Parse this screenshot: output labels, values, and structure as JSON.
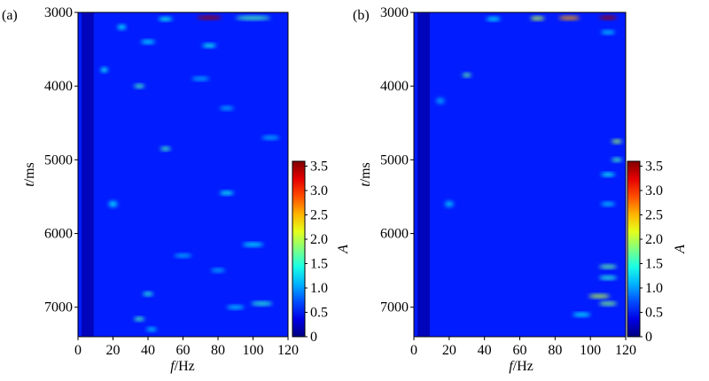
{
  "chart_data": [
    {
      "type": "heatmap",
      "panel_label": "(a)",
      "xlabel_italic": "f",
      "xlabel_unit": "/Hz",
      "ylabel_italic": "t",
      "ylabel_unit": "/ms",
      "xlim": [
        0,
        120
      ],
      "ylim": [
        3000,
        7400
      ],
      "y_inverted": true,
      "xticks": [
        0,
        20,
        40,
        60,
        80,
        100,
        120
      ],
      "yticks": [
        3000,
        4000,
        5000,
        6000,
        7000
      ],
      "colorbar": {
        "label": "A",
        "range": [
          0,
          3.6
        ],
        "ticks": [
          0,
          0.5,
          1.0,
          1.5,
          2.0,
          2.5,
          3.0,
          3.5
        ]
      },
      "colormap": "jet",
      "background_level": 0.55,
      "features": [
        {
          "f": 75,
          "t": 3070,
          "A": 3.5,
          "fw": 14,
          "tw": 22
        },
        {
          "f": 100,
          "t": 3075,
          "A": 1.6,
          "fw": 20,
          "tw": 20
        },
        {
          "f": 50,
          "t": 3090,
          "A": 1.4,
          "fw": 8,
          "tw": 20
        },
        {
          "f": 25,
          "t": 3200,
          "A": 1.3,
          "fw": 5,
          "tw": 60
        },
        {
          "f": 40,
          "t": 3400,
          "A": 1.3,
          "fw": 8,
          "tw": 25
        },
        {
          "f": 75,
          "t": 3450,
          "A": 1.4,
          "fw": 8,
          "tw": 25
        },
        {
          "f": 15,
          "t": 3780,
          "A": 1.4,
          "fw": 4,
          "tw": 60
        },
        {
          "f": 35,
          "t": 4000,
          "A": 1.6,
          "fw": 6,
          "tw": 30
        },
        {
          "f": 70,
          "t": 3900,
          "A": 1.1,
          "fw": 10,
          "tw": 20
        },
        {
          "f": 85,
          "t": 4300,
          "A": 1.1,
          "fw": 8,
          "tw": 30
        },
        {
          "f": 50,
          "t": 4850,
          "A": 1.6,
          "fw": 6,
          "tw": 30
        },
        {
          "f": 110,
          "t": 4700,
          "A": 1.1,
          "fw": 10,
          "tw": 20
        },
        {
          "f": 85,
          "t": 5450,
          "A": 1.4,
          "fw": 8,
          "tw": 25
        },
        {
          "f": 20,
          "t": 5600,
          "A": 1.2,
          "fw": 5,
          "tw": 80
        },
        {
          "f": 100,
          "t": 6150,
          "A": 1.3,
          "fw": 12,
          "tw": 25
        },
        {
          "f": 60,
          "t": 6300,
          "A": 1.1,
          "fw": 10,
          "tw": 20
        },
        {
          "f": 80,
          "t": 6500,
          "A": 1.1,
          "fw": 8,
          "tw": 25
        },
        {
          "f": 40,
          "t": 6820,
          "A": 1.5,
          "fw": 6,
          "tw": 30
        },
        {
          "f": 105,
          "t": 6950,
          "A": 1.5,
          "fw": 12,
          "tw": 30
        },
        {
          "f": 90,
          "t": 7000,
          "A": 1.2,
          "fw": 10,
          "tw": 30
        },
        {
          "f": 35,
          "t": 7160,
          "A": 1.6,
          "fw": 6,
          "tw": 35
        },
        {
          "f": 42,
          "t": 7300,
          "A": 1.2,
          "fw": 6,
          "tw": 25
        }
      ]
    },
    {
      "type": "heatmap",
      "panel_label": "(b)",
      "xlabel_italic": "f",
      "xlabel_unit": "/Hz",
      "ylabel_italic": "t",
      "ylabel_unit": "/ms",
      "xlim": [
        0,
        120
      ],
      "ylim": [
        3000,
        7400
      ],
      "y_inverted": true,
      "xticks": [
        0,
        20,
        40,
        60,
        80,
        100,
        120
      ],
      "yticks": [
        3000,
        4000,
        5000,
        6000,
        7000
      ],
      "colorbar": {
        "label": "A",
        "range": [
          0,
          3.6
        ],
        "ticks": [
          0,
          0.5,
          1.0,
          1.5,
          2.0,
          2.5,
          3.0,
          3.5
        ]
      },
      "colormap": "jet",
      "background_level": 0.55,
      "features": [
        {
          "f": 110,
          "t": 3070,
          "A": 3.5,
          "fw": 10,
          "tw": 20
        },
        {
          "f": 88,
          "t": 3075,
          "A": 2.6,
          "fw": 12,
          "tw": 20
        },
        {
          "f": 70,
          "t": 3080,
          "A": 2.0,
          "fw": 8,
          "tw": 20
        },
        {
          "f": 45,
          "t": 3090,
          "A": 1.3,
          "fw": 8,
          "tw": 20
        },
        {
          "f": 30,
          "t": 3850,
          "A": 1.7,
          "fw": 5,
          "tw": 30
        },
        {
          "f": 110,
          "t": 3270,
          "A": 1.2,
          "fw": 8,
          "tw": 20
        },
        {
          "f": 115,
          "t": 4750,
          "A": 1.9,
          "fw": 6,
          "tw": 25
        },
        {
          "f": 115,
          "t": 5000,
          "A": 1.6,
          "fw": 6,
          "tw": 25
        },
        {
          "f": 110,
          "t": 5200,
          "A": 1.4,
          "fw": 8,
          "tw": 25
        },
        {
          "f": 110,
          "t": 5600,
          "A": 1.2,
          "fw": 8,
          "tw": 25
        },
        {
          "f": 110,
          "t": 6450,
          "A": 1.7,
          "fw": 10,
          "tw": 35
        },
        {
          "f": 110,
          "t": 6600,
          "A": 1.5,
          "fw": 10,
          "tw": 30
        },
        {
          "f": 105,
          "t": 6850,
          "A": 2.0,
          "fw": 12,
          "tw": 40
        },
        {
          "f": 110,
          "t": 6950,
          "A": 1.8,
          "fw": 10,
          "tw": 30
        },
        {
          "f": 95,
          "t": 7100,
          "A": 1.3,
          "fw": 10,
          "tw": 30
        },
        {
          "f": 20,
          "t": 5600,
          "A": 1.1,
          "fw": 5,
          "tw": 80
        },
        {
          "f": 15,
          "t": 4200,
          "A": 1.0,
          "fw": 5,
          "tw": 80
        }
      ]
    }
  ]
}
